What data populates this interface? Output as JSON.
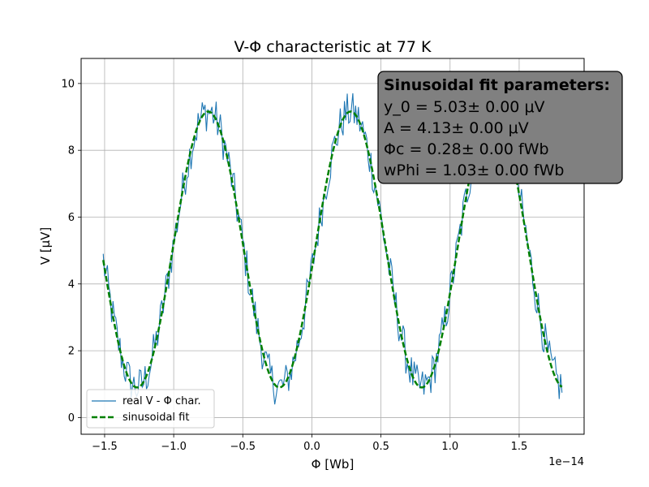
{
  "chart_data": {
    "type": "line",
    "title": "V-Φ characteristic at 77 K",
    "xlabel": "Φ [Wb]",
    "ylabel": "V [μV]",
    "x_offset_label": "1e−14",
    "xlim": [
      -1.67,
      1.97
    ],
    "ylim": [
      -0.5,
      10.75
    ],
    "x_ticks": [
      -1.5,
      -1.0,
      -0.5,
      0.0,
      0.5,
      1.0,
      1.5
    ],
    "x_tick_labels": [
      "−1.5",
      "−1.0",
      "−0.5",
      "0.0",
      "0.5",
      "1.0",
      "1.5"
    ],
    "y_ticks": [
      0,
      2,
      4,
      6,
      8,
      10
    ],
    "y_tick_labels": [
      "0",
      "2",
      "4",
      "6",
      "8",
      "10"
    ],
    "grid": true,
    "legend_placement": "lower-left",
    "series": [
      {
        "name": "real V - Φ char.",
        "color": "#1f77b4",
        "style": "solid",
        "y_offset": 5.03,
        "amplitude": 4.13,
        "phi_c": 0.28,
        "period": 1.03,
        "x_start": -1.51,
        "x_end": 1.81,
        "n_points": 330,
        "noise_amplitude": 0.6
      },
      {
        "name": "sinusoidal fit",
        "color": "#008000",
        "style": "dashed",
        "y_offset": 5.03,
        "amplitude": 4.13,
        "phi_c": 0.28,
        "period": 1.03,
        "x_start": -1.51,
        "x_end": 1.81,
        "n_points": 400
      }
    ],
    "annotation": {
      "heading": "Sinusoidal fit parameters:",
      "lines": [
        "y_0 = 5.03± 0.00 μV",
        "A = 4.13± 0.00 μV",
        "Φc = 0.28± 0.00 fWb",
        "wPhi = 1.03± 0.00  fWb"
      ],
      "background_color": "#808080",
      "placement": "top-right"
    }
  }
}
